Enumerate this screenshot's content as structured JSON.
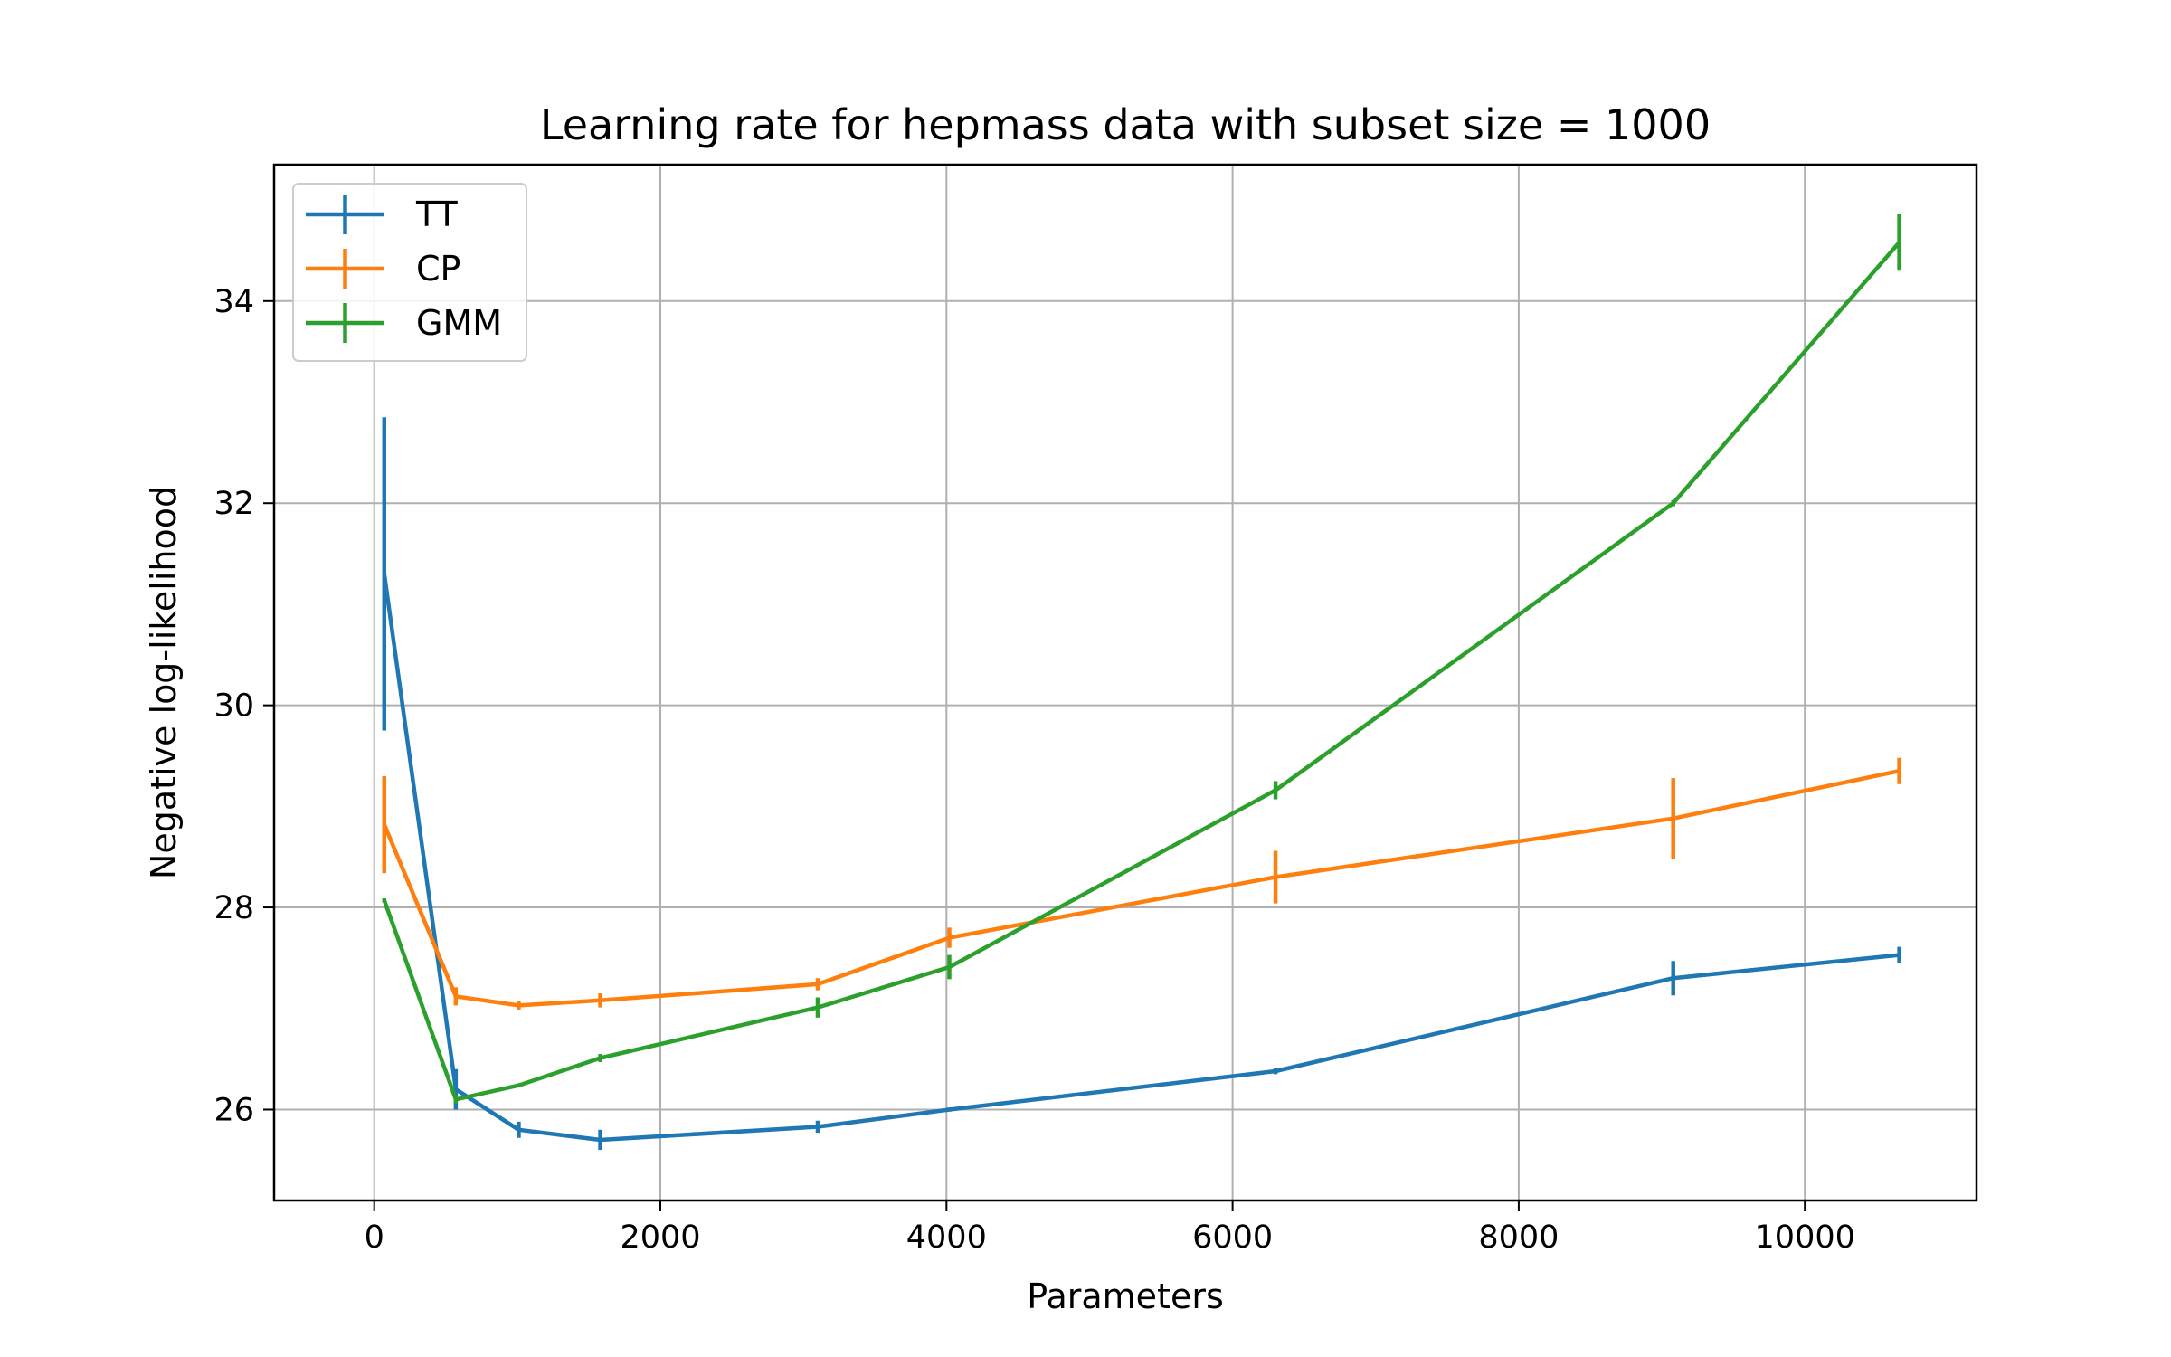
{
  "chart_data": {
    "type": "line",
    "title": "Learning rate for hepmass data with subset size = 1000",
    "xlabel": "Parameters",
    "ylabel": "Negative log-likelihood",
    "xlim": [
      -700,
      11200
    ],
    "ylim": [
      25.1,
      35.35
    ],
    "xticks": [
      0,
      2000,
      4000,
      6000,
      8000,
      10000
    ],
    "yticks": [
      26,
      28,
      30,
      32,
      34
    ],
    "grid": true,
    "legend_position": "top-left",
    "error_bars": "vertical",
    "series": [
      {
        "name": "TT",
        "color": "#1f77b4",
        "x": [
          70,
          570,
          1010,
          1580,
          3100,
          4020,
          6300,
          9080,
          10660
        ],
        "y": [
          31.3,
          26.2,
          25.8,
          25.7,
          25.83,
          26.0,
          26.38,
          27.3,
          27.53
        ],
        "err": [
          1.55,
          0.2,
          0.08,
          0.1,
          0.06,
          0.02,
          0.03,
          0.17,
          0.08
        ]
      },
      {
        "name": "CP",
        "color": "#ff7f0e",
        "x": [
          70,
          570,
          1010,
          1580,
          3100,
          4020,
          6300,
          9080,
          10660
        ],
        "y": [
          28.82,
          27.12,
          27.03,
          27.08,
          27.24,
          27.7,
          28.3,
          28.88,
          29.35
        ],
        "err": [
          0.48,
          0.09,
          0.04,
          0.07,
          0.06,
          0.1,
          0.26,
          0.4,
          0.13
        ]
      },
      {
        "name": "GMM",
        "color": "#2ca02c",
        "x": [
          70,
          570,
          1010,
          1580,
          3100,
          4020,
          6300,
          9080,
          10660
        ],
        "y": [
          28.07,
          26.1,
          26.24,
          26.51,
          27.01,
          27.41,
          29.16,
          32.0,
          34.58
        ],
        "err": [
          0.02,
          0.04,
          0.02,
          0.04,
          0.1,
          0.12,
          0.09,
          0.03,
          0.28
        ]
      }
    ]
  }
}
